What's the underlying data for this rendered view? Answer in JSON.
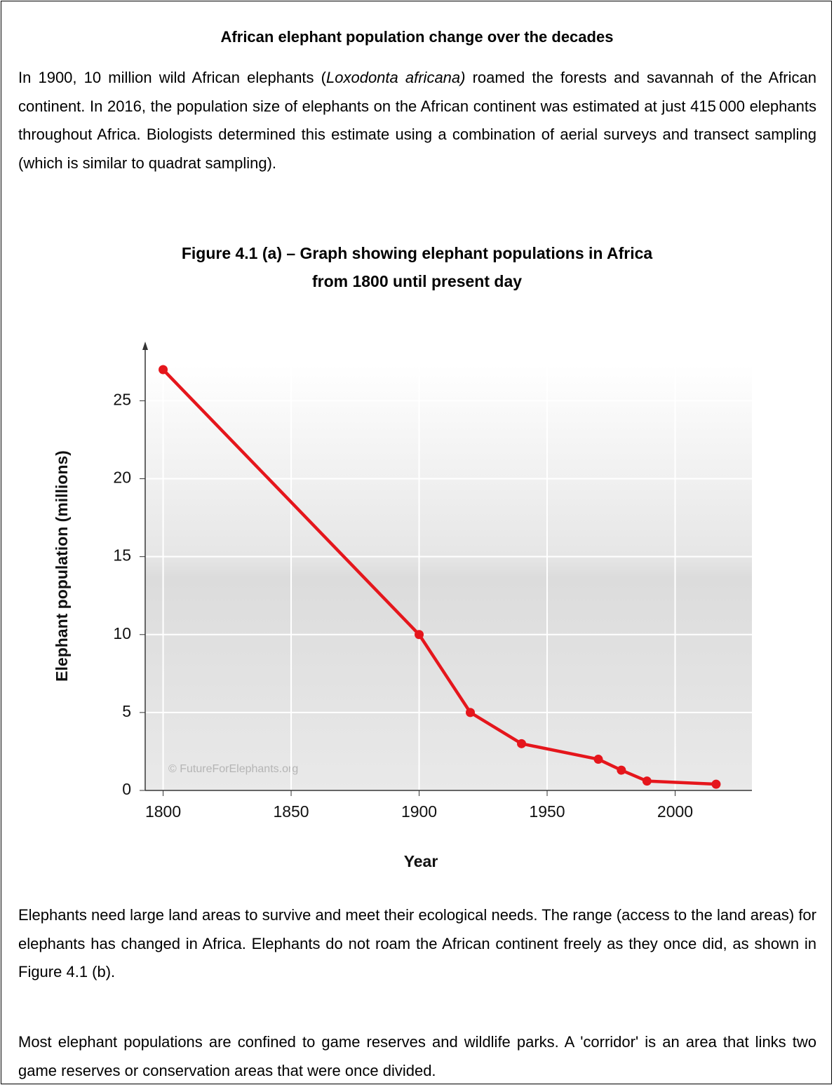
{
  "header": {
    "title": "African elephant population change over the decades"
  },
  "intro": [
    "In 1900, 10 million wild African elephants (",
    "Loxodonta africana)",
    " roamed the forests and savannah of the African continent. In 2016, the population size of elephants on the African continent was estimated at just 415 000 elephants throughout Africa. Biologists determined this estimate using a combination of aerial surveys and transect sampling (which is similar to quadrat sampling)."
  ],
  "figure_caption": [
    "Figure 4.1 (a) – Graph showing elephant populations in Africa",
    "from 1800 until present day"
  ],
  "chart_data": {
    "type": "line",
    "x_label": "Year",
    "y_label": "Elephant population (millions)",
    "annotation": "© FutureForElephants.org",
    "x": [
      1800,
      1900,
      1920,
      1940,
      1970,
      1979,
      1989,
      2016
    ],
    "values": [
      27,
      10,
      5,
      3,
      2,
      1.3,
      0.6,
      0.4
    ],
    "color": "#e5161c",
    "xlim": [
      1793,
      2030
    ],
    "ylim": [
      0,
      28.8
    ],
    "xticks": [
      1800,
      1850,
      1900,
      1950,
      2000
    ],
    "yticks": [
      0,
      5,
      10,
      15,
      20,
      25
    ],
    "grid": true
  },
  "paragraphs": [
    "Elephants need large land areas to survive and meet their ecological needs. The range (access to the land areas) for elephants has changed in Africa. Elephants do not roam the African continent freely as they once did, as shown in Figure 4.1 (b).",
    "Most elephant populations are confined to game reserves and wildlife parks. A 'corridor' is an area that links two game reserves or conservation areas that were once divided."
  ]
}
